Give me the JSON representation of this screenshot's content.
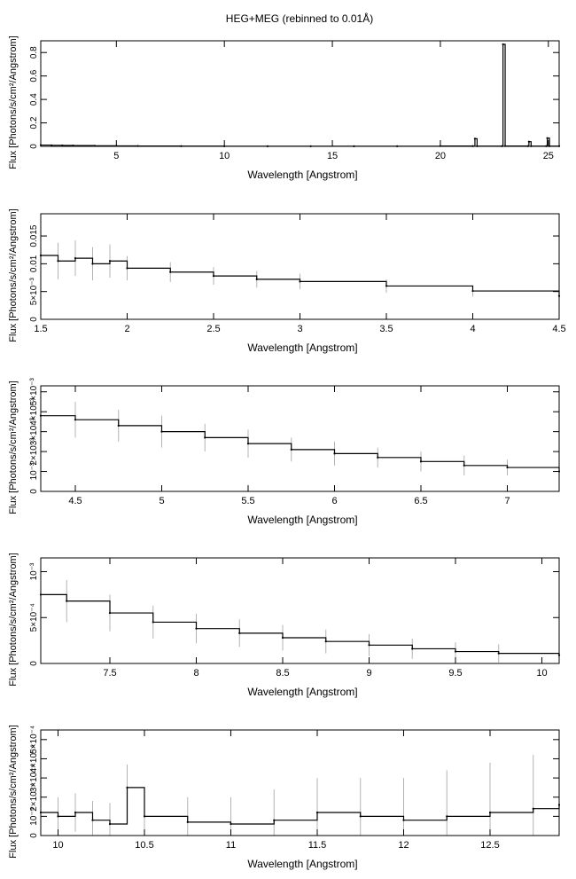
{
  "figure": {
    "title": "HEG+MEG (rebinned to 0.01Å)"
  },
  "chart_data": [
    {
      "type": "line",
      "title": "HEG+MEG (rebinned to 0.01Å)",
      "xlabel": "Wavelength [Angstrom]",
      "ylabel": "Flux [Photons/s/cm²/Angstrom]",
      "xlim": [
        1.5,
        25.5
      ],
      "ylim": [
        0,
        0.9
      ],
      "xticks": [
        5,
        10,
        15,
        20,
        25
      ],
      "xtick_labels": [
        "5",
        "10",
        "15",
        "20",
        "25"
      ],
      "yticks": [
        0,
        0.2,
        0.4,
        0.6,
        0.8
      ],
      "ytick_labels": [
        "0",
        "0.2",
        "0.4",
        "0.6",
        "0.8"
      ],
      "series": [
        {
          "x": [
            1.5,
            2,
            2.5,
            3,
            4,
            5,
            6,
            8,
            10,
            12,
            14,
            16,
            18,
            20,
            21.5,
            21.6,
            21.7,
            22.85,
            22.9,
            23.0,
            24.05,
            24.1,
            24.2,
            24.9,
            24.95,
            25.05,
            25.5
          ],
          "y": [
            0.011,
            0.009,
            0.008,
            0.007,
            0.005,
            0.004,
            0.003,
            0.002,
            0.001,
            0.001,
            0.001,
            0.001,
            0.001,
            0.003,
            0.002,
            0.065,
            0.002,
            0.002,
            0.87,
            0.003,
            0.002,
            0.04,
            0.002,
            0.002,
            0.07,
            0.002,
            0.002
          ]
        }
      ],
      "grid": false
    },
    {
      "type": "line",
      "xlabel": "Wavelength [Angstrom]",
      "ylabel": "Flux [Photons/s/cm²/Angstrom]",
      "xlim": [
        1.5,
        4.5
      ],
      "ylim": [
        0,
        0.019
      ],
      "xticks": [
        1.5,
        2,
        2.5,
        3,
        3.5,
        4,
        4.5
      ],
      "xtick_labels": [
        "1.5",
        "2",
        "2.5",
        "3",
        "3.5",
        "4",
        "4.5"
      ],
      "yticks": [
        0,
        0.005,
        0.01,
        0.015
      ],
      "ytick_labels": [
        "0",
        "5×10⁻³",
        "0.01",
        "0.015"
      ],
      "series": [
        {
          "x": [
            1.5,
            1.6,
            1.7,
            1.8,
            1.9,
            2.0,
            2.25,
            2.5,
            2.75,
            3.0,
            3.5,
            4.0,
            4.5
          ],
          "y": [
            0.0115,
            0.0105,
            0.011,
            0.01,
            0.0105,
            0.0092,
            0.0085,
            0.0078,
            0.0072,
            0.0068,
            0.006,
            0.0051,
            0.0042
          ],
          "errors": [
            0.0035,
            0.0033,
            0.0032,
            0.003,
            0.003,
            0.0022,
            0.0018,
            0.0016,
            0.0015,
            0.0014,
            0.0012,
            0.001,
            0.0009
          ]
        }
      ],
      "grid": false
    },
    {
      "type": "line",
      "xlabel": "Wavelength [Angstrom]",
      "ylabel": "Flux [Photons/s/cm²/Angstrom]",
      "xlim": [
        4.3,
        7.3
      ],
      "ylim": [
        0,
        0.0053
      ],
      "xticks": [
        4.5,
        5,
        5.5,
        6,
        6.5,
        7
      ],
      "xtick_labels": [
        "4.5",
        "5",
        "5.5",
        "6",
        "6.5",
        "7"
      ],
      "yticks": [
        0,
        0.001,
        0.002,
        0.003,
        0.004,
        0.005
      ],
      "ytick_labels": [
        "0",
        "10⁻³",
        "2×10⁻³",
        "3×10⁻³",
        "4×10⁻³",
        "5×10⁻³"
      ],
      "series": [
        {
          "x": [
            4.3,
            4.5,
            4.75,
            5.0,
            5.25,
            5.5,
            5.75,
            6.0,
            6.25,
            6.5,
            6.75,
            7.0,
            7.3
          ],
          "y": [
            0.0038,
            0.0036,
            0.0033,
            0.003,
            0.0027,
            0.0024,
            0.0021,
            0.0019,
            0.0017,
            0.0015,
            0.0013,
            0.0012,
            0.001
          ],
          "errors": [
            0.0009,
            0.0009,
            0.0008,
            0.0008,
            0.0007,
            0.0007,
            0.0006,
            0.0006,
            0.0005,
            0.0005,
            0.0005,
            0.0004,
            0.0004
          ]
        }
      ],
      "grid": false
    },
    {
      "type": "line",
      "xlabel": "Wavelength [Angstrom]",
      "ylabel": "Flux [Photons/s/cm²/Angstrom]",
      "xlim": [
        7.1,
        10.1
      ],
      "ylim": [
        0,
        0.00115
      ],
      "xticks": [
        7.5,
        8,
        8.5,
        9,
        9.5,
        10
      ],
      "xtick_labels": [
        "7.5",
        "8",
        "8.5",
        "9",
        "9.5",
        "10"
      ],
      "yticks": [
        0,
        0.0005,
        0.001
      ],
      "ytick_labels": [
        "0",
        "5×10⁻⁴",
        "10⁻³"
      ],
      "series": [
        {
          "x": [
            7.1,
            7.25,
            7.5,
            7.75,
            8.0,
            8.25,
            8.5,
            8.75,
            9.0,
            9.25,
            9.5,
            9.75,
            10.1
          ],
          "y": [
            0.00075,
            0.00068,
            0.00055,
            0.00045,
            0.00038,
            0.00033,
            0.00028,
            0.00024,
            0.0002,
            0.00016,
            0.00013,
            0.00011,
            9e-05
          ],
          "errors": [
            0.00025,
            0.00023,
            0.0002,
            0.00018,
            0.00016,
            0.00015,
            0.00014,
            0.00013,
            0.00012,
            0.00011,
            0.0001,
            0.0001,
            9e-05
          ]
        }
      ],
      "grid": false
    },
    {
      "type": "line",
      "xlabel": "Wavelength [Angstrom]",
      "ylabel": "Flux [Photons/s/cm²/Angstrom]",
      "xlim": [
        9.9,
        12.9
      ],
      "ylim": [
        0,
        0.00055
      ],
      "xticks": [
        10,
        10.5,
        11,
        11.5,
        12,
        12.5
      ],
      "xtick_labels": [
        "10",
        "10.5",
        "11",
        "11.5",
        "12",
        "12.5"
      ],
      "yticks": [
        0,
        0.0001,
        0.0002,
        0.0003,
        0.0004,
        0.0005
      ],
      "ytick_labels": [
        "0",
        "10⁻⁴",
        "2×10⁻⁴",
        "3×10⁻⁴",
        "4×10⁻⁴",
        "5×10⁻⁴"
      ],
      "series": [
        {
          "x": [
            9.9,
            10.0,
            10.1,
            10.2,
            10.3,
            10.4,
            10.5,
            10.75,
            11.0,
            11.25,
            11.5,
            11.75,
            12.0,
            12.25,
            12.5,
            12.75,
            12.9
          ],
          "y": [
            0.00012,
            0.0001,
            0.00012,
            8e-05,
            6e-05,
            0.00025,
            0.0001,
            7e-05,
            6e-05,
            8e-05,
            0.00012,
            0.0001,
            8e-05,
            0.0001,
            0.00012,
            0.00014,
            0.00016
          ],
          "errors": [
            0.0001,
            0.0001,
            0.0001,
            0.0001,
            0.00011,
            0.00012,
            0.00012,
            0.00013,
            0.00014,
            0.00016,
            0.00018,
            0.0002,
            0.00022,
            0.00024,
            0.00026,
            0.00028,
            0.0003
          ]
        }
      ],
      "grid": false
    }
  ]
}
